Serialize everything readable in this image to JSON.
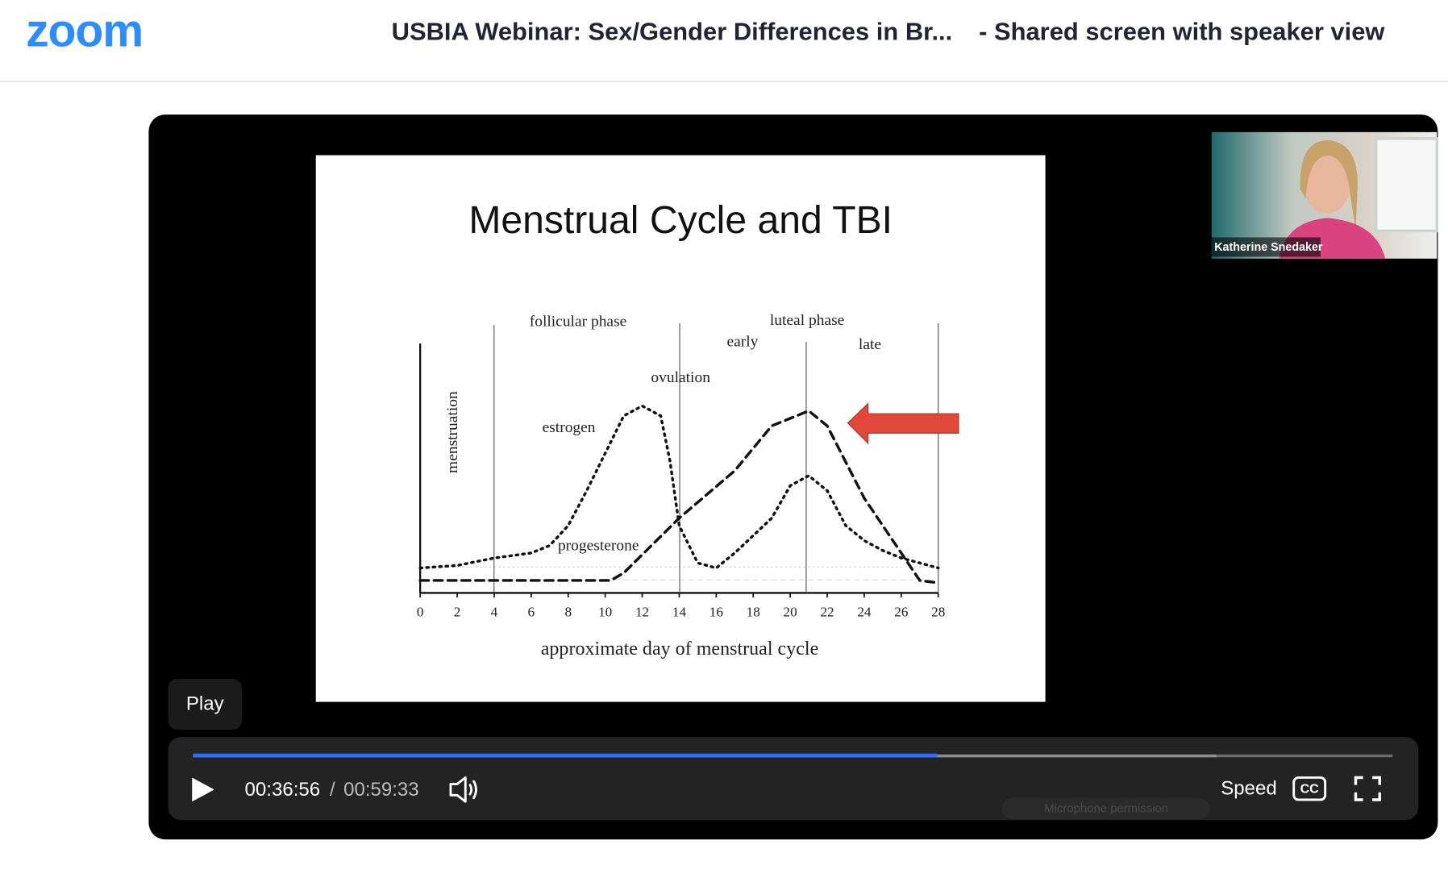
{
  "header": {
    "logo": "zoom",
    "title": "USBIA Webinar: Sex/Gender Differences in Br...",
    "view": "- Shared screen with speaker view"
  },
  "speaker": {
    "name": "Katherine Snedaker"
  },
  "slide": {
    "title": "Menstrual Cycle and TBI",
    "chart_data": {
      "type": "line",
      "x_label": "approximate day of menstrual cycle",
      "phase_labels": {
        "follicular": "follicular phase",
        "luteal": "luteal phase",
        "early": "early",
        "late": "late",
        "ovulation": "ovulation",
        "menstruation": "menstruation"
      },
      "xlim": [
        0,
        28
      ],
      "xticks": [
        0,
        2,
        4,
        6,
        8,
        10,
        12,
        14,
        16,
        18,
        20,
        22,
        24,
        26,
        28
      ],
      "ylim": [
        0,
        100
      ],
      "series": [
        {
          "name": "estrogen",
          "style": "dotted",
          "color": "#111",
          "x": [
            0,
            2,
            4,
            6,
            7,
            8,
            9,
            10,
            11,
            12,
            13,
            13.5,
            14,
            15,
            16,
            17,
            18,
            19,
            20,
            21,
            22,
            23,
            24,
            25,
            26,
            28
          ],
          "values": [
            10,
            11,
            14,
            16,
            19,
            27,
            41,
            56,
            71,
            75,
            71,
            53,
            27,
            12,
            10,
            16,
            23,
            30,
            43,
            47,
            41,
            27,
            21,
            17,
            14,
            10
          ]
        },
        {
          "name": "progesterone",
          "style": "dashed",
          "color": "#111",
          "x": [
            0,
            10.3,
            11,
            14,
            17,
            19,
            21,
            22,
            24,
            26,
            27,
            28
          ],
          "values": [
            5,
            5,
            8,
            30,
            49,
            67,
            73,
            67,
            38,
            16,
            5,
            4
          ]
        }
      ]
    }
  },
  "player": {
    "tooltip": "Play",
    "current_time": "00:36:56",
    "separator": "/",
    "total_time": "00:59:33",
    "speed": "Speed",
    "captions": "CC",
    "notice": "Microphone permission"
  }
}
